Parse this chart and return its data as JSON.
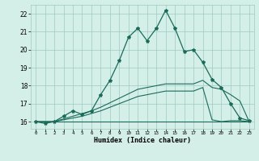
{
  "xlabel": "Humidex (Indice chaleur)",
  "x": [
    0,
    1,
    2,
    3,
    4,
    5,
    6,
    7,
    8,
    9,
    10,
    11,
    12,
    13,
    14,
    15,
    16,
    17,
    18,
    19,
    20,
    21,
    22,
    23
  ],
  "line1": [
    16.0,
    15.9,
    16.0,
    16.3,
    16.6,
    16.4,
    16.6,
    17.5,
    18.3,
    19.4,
    20.7,
    21.2,
    20.5,
    21.2,
    22.2,
    21.2,
    19.9,
    20.0,
    19.3,
    18.35,
    17.9,
    17.0,
    16.2,
    16.05
  ],
  "line2": [
    16.0,
    16.0,
    16.0,
    16.0,
    16.0,
    16.0,
    16.0,
    16.0,
    16.0,
    16.0,
    16.0,
    16.0,
    16.0,
    16.0,
    16.0,
    16.0,
    16.0,
    16.0,
    16.0,
    16.0,
    16.0,
    16.0,
    16.0,
    16.0
  ],
  "line3": [
    16.0,
    16.0,
    16.0,
    16.1,
    16.2,
    16.3,
    16.45,
    16.6,
    16.8,
    17.0,
    17.2,
    17.4,
    17.5,
    17.6,
    17.7,
    17.7,
    17.7,
    17.7,
    17.9,
    16.1,
    16.0,
    16.05,
    16.05,
    16.0
  ],
  "line4": [
    16.0,
    16.0,
    16.0,
    16.15,
    16.3,
    16.45,
    16.6,
    16.8,
    17.05,
    17.3,
    17.55,
    17.8,
    17.9,
    18.0,
    18.1,
    18.1,
    18.1,
    18.1,
    18.3,
    17.9,
    17.8,
    17.5,
    17.15,
    16.0
  ],
  "color": "#1b6b5a",
  "bg_color": "#d4eee8",
  "grid_color": "#9ecac2",
  "ylim": [
    15.6,
    22.5
  ],
  "xlim": [
    -0.5,
    23.5
  ],
  "yticks": [
    16,
    17,
    18,
    19,
    20,
    21,
    22
  ],
  "xticks": [
    0,
    1,
    2,
    3,
    4,
    5,
    6,
    7,
    8,
    9,
    10,
    11,
    12,
    13,
    14,
    15,
    16,
    17,
    18,
    19,
    20,
    21,
    22,
    23
  ],
  "xtick_labels": [
    "0",
    "1",
    "2",
    "3",
    "4",
    "5",
    "6",
    "7",
    "8",
    "9",
    "10",
    "11",
    "12",
    "13",
    "14",
    "15",
    "16",
    "17",
    "18",
    "19",
    "20",
    "21",
    "22",
    "23"
  ]
}
